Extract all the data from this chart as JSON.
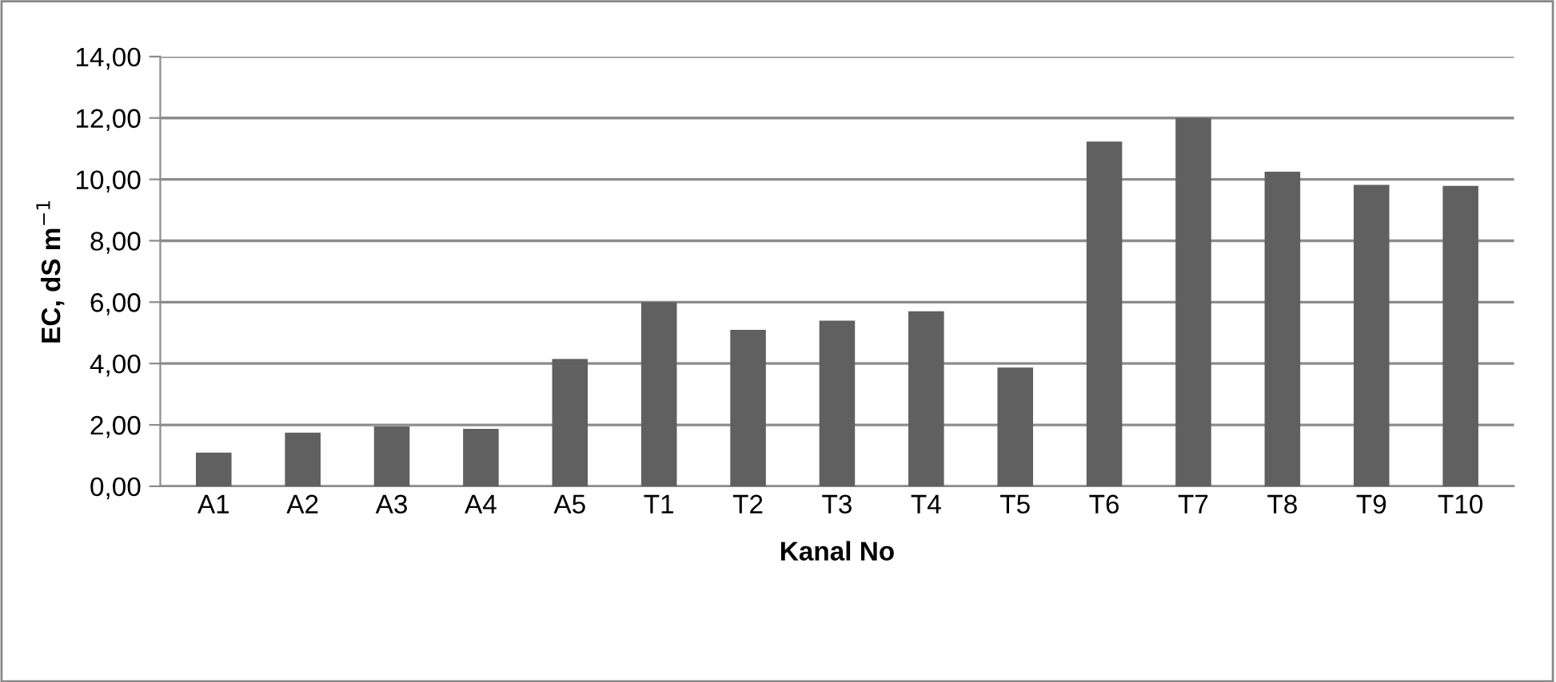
{
  "chart_data": {
    "type": "bar",
    "xlabel": "Kanal No",
    "ylabel": "EC, dS m$^{−1}$",
    "categories": [
      "A1",
      "A2",
      "A3",
      "A4",
      "A5",
      "T1",
      "T2",
      "T3",
      "T4",
      "T5",
      "T6",
      "T7",
      "T8",
      "T9",
      "T10"
    ],
    "values": [
      1.1,
      1.75,
      1.95,
      1.87,
      4.15,
      6.0,
      5.1,
      5.4,
      5.7,
      3.87,
      11.23,
      12.0,
      10.25,
      9.82,
      9.79
    ],
    "color": "#606060",
    "ylim": [
      0,
      14
    ],
    "yticks": [
      {
        "value": 0,
        "label": "0,00"
      },
      {
        "value": 2,
        "label": "2,00"
      },
      {
        "value": 4,
        "label": "4,00"
      },
      {
        "value": 6,
        "label": "6,00"
      },
      {
        "value": 8,
        "label": "8,00"
      },
      {
        "value": 10,
        "label": "10,00"
      },
      {
        "value": 12,
        "label": "12,00"
      },
      {
        "value": 14,
        "label": "14,00"
      }
    ],
    "grid": "y"
  }
}
